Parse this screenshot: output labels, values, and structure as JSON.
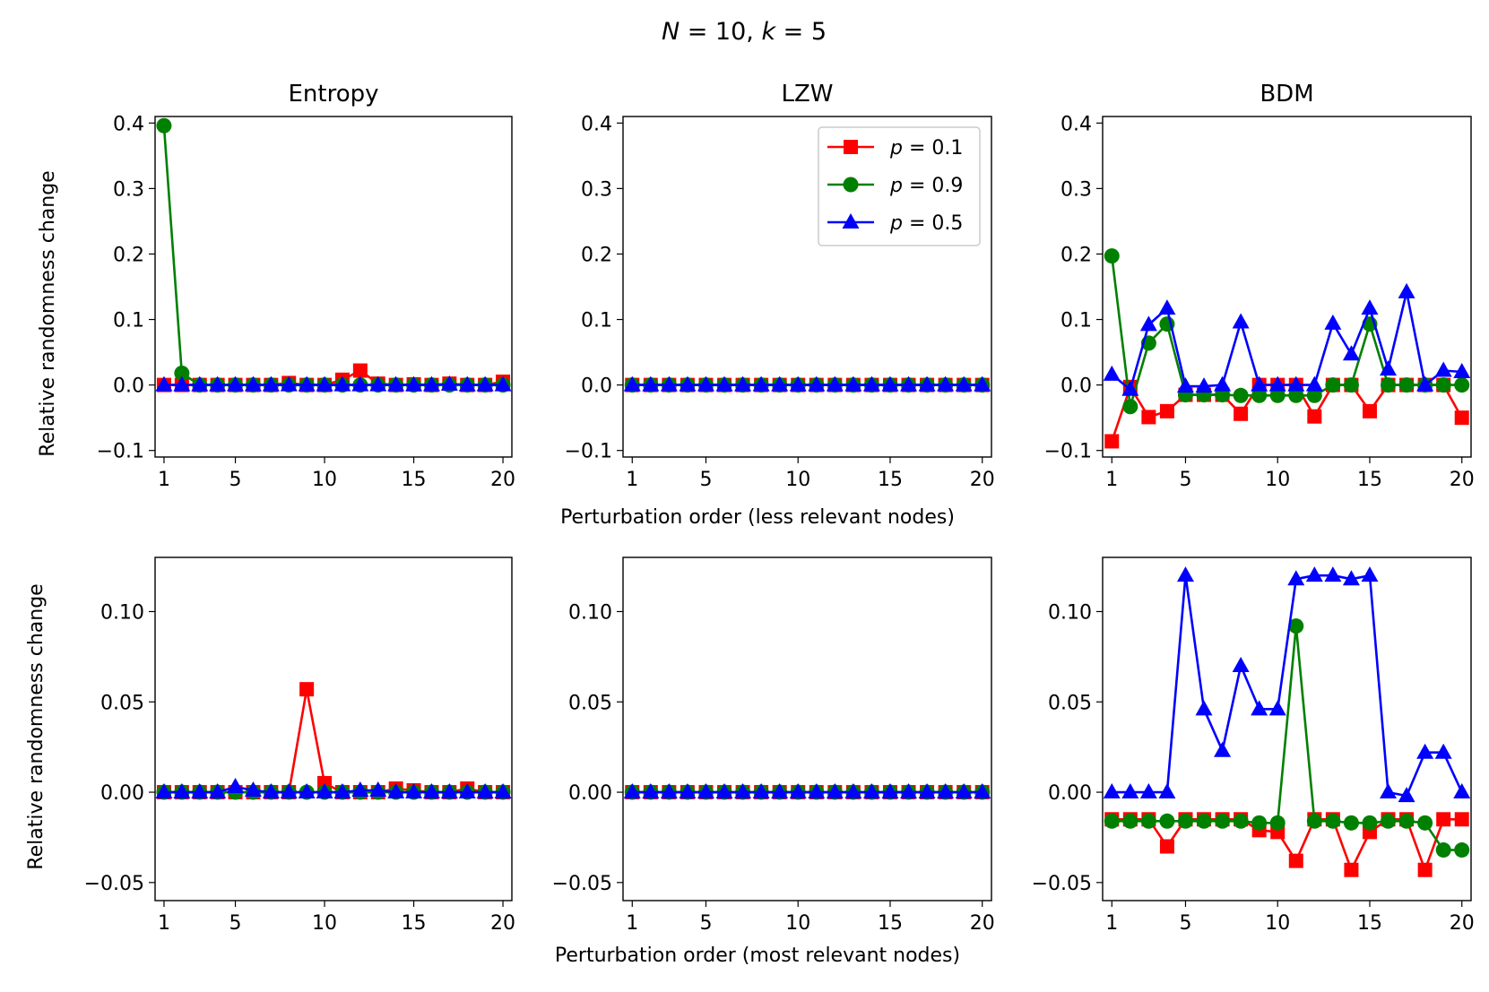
{
  "figure": {
    "suptitle": "N = 10, k = 5",
    "row_xlabels": [
      "Perturbation order (less relevant nodes)",
      "Perturbation order (most relevant nodes)"
    ],
    "ylabel": "Relative randomness change"
  },
  "legend": {
    "location": "upper-right of middle top panel",
    "entries": [
      {
        "label": "p = 0.1",
        "color": "#ff0000",
        "marker": "square"
      },
      {
        "label": "p = 0.9",
        "color": "#008000",
        "marker": "circle"
      },
      {
        "label": "p = 0.5",
        "color": "#0000ff",
        "marker": "triangle"
      }
    ]
  },
  "chart_data": [
    {
      "type": "line",
      "title": "Entropy",
      "xlabel": "",
      "ylabel": "Relative randomness change",
      "xlim": [
        0.5,
        20.5
      ],
      "ylim": [
        -0.11,
        0.41
      ],
      "xticks": [
        "1",
        "5",
        "10",
        "15",
        "20"
      ],
      "yticks": [
        "−0.1",
        "0.0",
        "0.1",
        "0.2",
        "0.3",
        "0.4"
      ],
      "x": [
        1,
        2,
        3,
        4,
        5,
        6,
        7,
        8,
        9,
        10,
        11,
        12,
        13,
        14,
        15,
        16,
        17,
        18,
        19,
        20
      ],
      "series": [
        {
          "name": "p = 0.1",
          "values": [
            0,
            0,
            0,
            0,
            0,
            0,
            0,
            0.003,
            0,
            0,
            0.008,
            0.022,
            0.002,
            0,
            0.001,
            0,
            0.002,
            0,
            0,
            0.005
          ]
        },
        {
          "name": "p = 0.9",
          "values": [
            0.396,
            0.018,
            0,
            0,
            0,
            0,
            0,
            0,
            0,
            0,
            0,
            0,
            0,
            0,
            0,
            0,
            0,
            0,
            0,
            0
          ]
        },
        {
          "name": "p = 0.5",
          "values": [
            0,
            0,
            0,
            0,
            0,
            0,
            0,
            0,
            0,
            0,
            0,
            0,
            0,
            0,
            0,
            0,
            0.001,
            0,
            0,
            0
          ]
        }
      ]
    },
    {
      "type": "line",
      "title": "LZW",
      "xlabel": "Perturbation order (less relevant nodes)",
      "ylabel": "",
      "xlim": [
        0.5,
        20.5
      ],
      "ylim": [
        -0.11,
        0.41
      ],
      "xticks": [
        "1",
        "5",
        "10",
        "15",
        "20"
      ],
      "yticks": [
        "−0.1",
        "0.0",
        "0.1",
        "0.2",
        "0.3",
        "0.4"
      ],
      "x": [
        1,
        2,
        3,
        4,
        5,
        6,
        7,
        8,
        9,
        10,
        11,
        12,
        13,
        14,
        15,
        16,
        17,
        18,
        19,
        20
      ],
      "series": [
        {
          "name": "p = 0.1",
          "values": [
            0,
            0,
            0,
            0,
            0,
            0,
            0,
            0,
            0,
            0,
            0,
            0,
            0,
            0,
            0,
            0,
            0,
            0,
            0,
            0
          ]
        },
        {
          "name": "p = 0.9",
          "values": [
            0,
            0,
            0,
            0,
            0,
            0,
            0,
            0,
            0,
            0,
            0,
            0,
            0,
            0,
            0,
            0,
            0,
            0,
            0,
            0
          ]
        },
        {
          "name": "p = 0.5",
          "values": [
            0,
            0,
            0,
            0,
            0,
            0,
            0,
            0,
            0,
            0,
            0,
            0,
            0,
            0,
            0,
            0,
            0,
            0,
            0,
            0
          ]
        }
      ]
    },
    {
      "type": "line",
      "title": "BDM",
      "xlabel": "",
      "ylabel": "",
      "xlim": [
        0.5,
        20.5
      ],
      "ylim": [
        -0.11,
        0.41
      ],
      "xticks": [
        "1",
        "5",
        "10",
        "15",
        "20"
      ],
      "yticks": [
        "−0.1",
        "0.0",
        "0.1",
        "0.2",
        "0.3",
        "0.4"
      ],
      "x": [
        1,
        2,
        3,
        4,
        5,
        6,
        7,
        8,
        9,
        10,
        11,
        12,
        13,
        14,
        15,
        16,
        17,
        18,
        19,
        20
      ],
      "series": [
        {
          "name": "p = 0.1",
          "values": [
            -0.086,
            -0.003,
            -0.049,
            -0.04,
            -0.015,
            -0.015,
            -0.015,
            -0.044,
            0,
            0,
            0,
            -0.048,
            0,
            0,
            -0.04,
            0,
            0,
            0,
            0,
            -0.05
          ]
        },
        {
          "name": "p = 0.9",
          "values": [
            0.197,
            -0.033,
            0.064,
            0.093,
            -0.015,
            -0.015,
            -0.015,
            -0.016,
            -0.016,
            -0.016,
            -0.016,
            -0.016,
            0,
            0,
            0.093,
            0,
            0,
            0,
            0,
            0
          ]
        },
        {
          "name": "p = 0.5",
          "values": [
            0.016,
            -0.007,
            0.092,
            0.117,
            -0.002,
            -0.002,
            0,
            0.096,
            0,
            0,
            0,
            0,
            0.094,
            0.047,
            0.117,
            0.024,
            0.142,
            0,
            0.022,
            0.02
          ]
        }
      ]
    },
    {
      "type": "line",
      "title": "",
      "xlabel": "",
      "ylabel": "Relative randomness change",
      "xlim": [
        0.5,
        20.5
      ],
      "ylim": [
        -0.06,
        0.13
      ],
      "xticks": [
        "1",
        "5",
        "10",
        "15",
        "20"
      ],
      "yticks": [
        "−0.05",
        "0.00",
        "0.05",
        "0.10"
      ],
      "x": [
        1,
        2,
        3,
        4,
        5,
        6,
        7,
        8,
        9,
        10,
        11,
        12,
        13,
        14,
        15,
        16,
        17,
        18,
        19,
        20
      ],
      "series": [
        {
          "name": "p = 0.1",
          "values": [
            0,
            0,
            0,
            0,
            0,
            0,
            0,
            0,
            0.057,
            0.005,
            0,
            0,
            0,
            0.002,
            0.001,
            0,
            0,
            0.002,
            0,
            0
          ]
        },
        {
          "name": "p = 0.9",
          "values": [
            0,
            0,
            0,
            0,
            0,
            0,
            0,
            0,
            0,
            0,
            0,
            0,
            0,
            0,
            0,
            0,
            0,
            0,
            0,
            0
          ]
        },
        {
          "name": "p = 0.5",
          "values": [
            0,
            0,
            0,
            0,
            0.003,
            0.001,
            0,
            0,
            0,
            0,
            0,
            0.001,
            0.001,
            0,
            0,
            0,
            0,
            0,
            0,
            0
          ]
        }
      ]
    },
    {
      "type": "line",
      "title": "",
      "xlabel": "Perturbation order (most relevant nodes)",
      "ylabel": "",
      "xlim": [
        0.5,
        20.5
      ],
      "ylim": [
        -0.06,
        0.13
      ],
      "xticks": [
        "1",
        "5",
        "10",
        "15",
        "20"
      ],
      "yticks": [
        "−0.05",
        "0.00",
        "0.05",
        "0.10"
      ],
      "x": [
        1,
        2,
        3,
        4,
        5,
        6,
        7,
        8,
        9,
        10,
        11,
        12,
        13,
        14,
        15,
        16,
        17,
        18,
        19,
        20
      ],
      "series": [
        {
          "name": "p = 0.1",
          "values": [
            0,
            0,
            0,
            0,
            0,
            0,
            0,
            0,
            0,
            0,
            0,
            0,
            0,
            0,
            0,
            0,
            0,
            0,
            0,
            0
          ]
        },
        {
          "name": "p = 0.9",
          "values": [
            0,
            0,
            0,
            0,
            0,
            0,
            0,
            0,
            0,
            0,
            0,
            0,
            0,
            0,
            0,
            0,
            0,
            0,
            0,
            0
          ]
        },
        {
          "name": "p = 0.5",
          "values": [
            0,
            0,
            0,
            0,
            0,
            0,
            0,
            0,
            0,
            0,
            0,
            0,
            0,
            0,
            0,
            0,
            0,
            0,
            0,
            0
          ]
        }
      ]
    },
    {
      "type": "line",
      "title": "",
      "xlabel": "",
      "ylabel": "",
      "xlim": [
        0.5,
        20.5
      ],
      "ylim": [
        -0.06,
        0.13
      ],
      "xticks": [
        "1",
        "5",
        "10",
        "15",
        "20"
      ],
      "yticks": [
        "−0.05",
        "0.00",
        "0.05",
        "0.10"
      ],
      "x": [
        1,
        2,
        3,
        4,
        5,
        6,
        7,
        8,
        9,
        10,
        11,
        12,
        13,
        14,
        15,
        16,
        17,
        18,
        19,
        20
      ],
      "series": [
        {
          "name": "p = 0.1",
          "values": [
            -0.015,
            -0.015,
            -0.015,
            -0.03,
            -0.015,
            -0.015,
            -0.015,
            -0.015,
            -0.021,
            -0.022,
            -0.038,
            -0.015,
            -0.015,
            -0.043,
            -0.022,
            -0.015,
            -0.015,
            -0.043,
            -0.015,
            -0.015
          ]
        },
        {
          "name": "p = 0.9",
          "values": [
            -0.016,
            -0.016,
            -0.016,
            -0.016,
            -0.016,
            -0.016,
            -0.016,
            -0.016,
            -0.017,
            -0.017,
            0.092,
            -0.016,
            -0.016,
            -0.017,
            -0.017,
            -0.016,
            -0.016,
            -0.017,
            -0.032,
            -0.032
          ]
        },
        {
          "name": "p = 0.5",
          "values": [
            0,
            0,
            0,
            0,
            0.12,
            0.046,
            0.023,
            0.07,
            0.046,
            0.046,
            0.118,
            0.12,
            0.12,
            0.118,
            0.12,
            0,
            -0.002,
            0.022,
            0.022,
            0
          ]
        }
      ]
    }
  ]
}
